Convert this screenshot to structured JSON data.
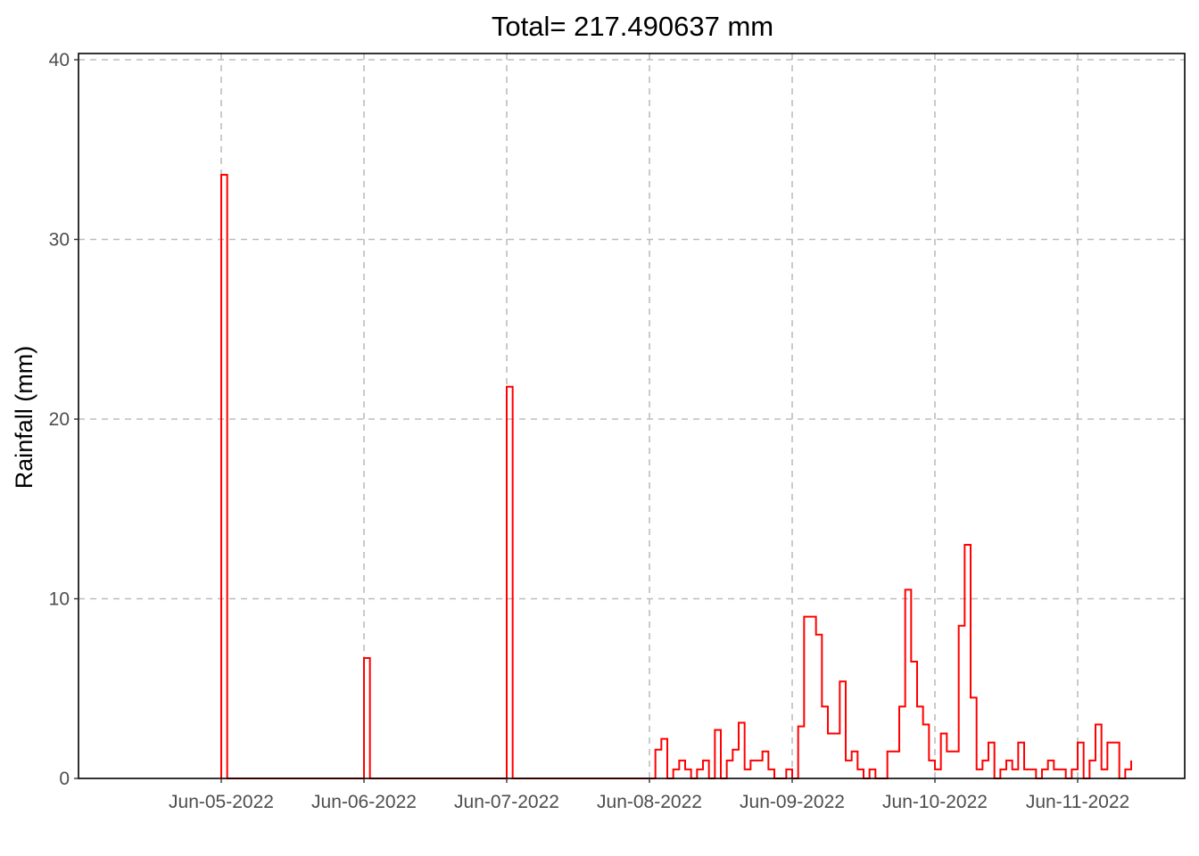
{
  "chart_data": {
    "type": "line",
    "step": true,
    "title": "Total= 217.490637 mm",
    "ylabel": "Rainfall (mm)",
    "xlabel": "",
    "ylim": [
      0,
      40
    ],
    "y_ticks": [
      0,
      10,
      20,
      30,
      40
    ],
    "x_ticks": [
      {
        "day": "2022-06-05",
        "label": "Jun-05-2022"
      },
      {
        "day": "2022-06-06",
        "label": "Jun-06-2022"
      },
      {
        "day": "2022-06-07",
        "label": "Jun-07-2022"
      },
      {
        "day": "2022-06-08",
        "label": "Jun-08-2022"
      },
      {
        "day": "2022-06-09",
        "label": "Jun-09-2022"
      },
      {
        "day": "2022-06-10",
        "label": "Jun-10-2022"
      },
      {
        "day": "2022-06-11",
        "label": "Jun-11-2022"
      }
    ],
    "xlim": [
      "2022-06-04T00:00",
      "2022-06-11T18:00"
    ],
    "grid": true,
    "legend": "none",
    "color": "#ff0000",
    "series": [
      {
        "points": [
          [
            "2022-06-05T00:00",
            33.6
          ],
          [
            "2022-06-05T01:00",
            0
          ],
          [
            "2022-06-06T00:00",
            6.7
          ],
          [
            "2022-06-06T01:00",
            0
          ],
          [
            "2022-06-07T00:00",
            21.8
          ],
          [
            "2022-06-07T01:00",
            0
          ],
          [
            "2022-06-08T00:00",
            0
          ],
          [
            "2022-06-08T01:00",
            1.6
          ],
          [
            "2022-06-08T02:00",
            2.2
          ],
          [
            "2022-06-08T03:00",
            0
          ],
          [
            "2022-06-08T04:00",
            0.5
          ],
          [
            "2022-06-08T05:00",
            1.0
          ],
          [
            "2022-06-08T06:00",
            0.5
          ],
          [
            "2022-06-08T07:00",
            0
          ],
          [
            "2022-06-08T08:00",
            0.5
          ],
          [
            "2022-06-08T09:00",
            1.0
          ],
          [
            "2022-06-08T10:00",
            0
          ],
          [
            "2022-06-08T11:00",
            2.7
          ],
          [
            "2022-06-08T12:00",
            0
          ],
          [
            "2022-06-08T13:00",
            1.0
          ],
          [
            "2022-06-08T14:00",
            1.6
          ],
          [
            "2022-06-08T15:00",
            3.1
          ],
          [
            "2022-06-08T16:00",
            0.5
          ],
          [
            "2022-06-08T17:00",
            1.0
          ],
          [
            "2022-06-08T18:00",
            1.0
          ],
          [
            "2022-06-08T19:00",
            1.5
          ],
          [
            "2022-06-08T20:00",
            0.5
          ],
          [
            "2022-06-08T21:00",
            0
          ],
          [
            "2022-06-08T23:00",
            0.5
          ],
          [
            "2022-06-09T00:00",
            0
          ],
          [
            "2022-06-09T01:00",
            2.9
          ],
          [
            "2022-06-09T02:00",
            9.0
          ],
          [
            "2022-06-09T03:00",
            9.0
          ],
          [
            "2022-06-09T04:00",
            8.0
          ],
          [
            "2022-06-09T05:00",
            4.0
          ],
          [
            "2022-06-09T06:00",
            2.5
          ],
          [
            "2022-06-09T07:00",
            2.5
          ],
          [
            "2022-06-09T08:00",
            5.4
          ],
          [
            "2022-06-09T09:00",
            1.0
          ],
          [
            "2022-06-09T10:00",
            1.5
          ],
          [
            "2022-06-09T11:00",
            0.5
          ],
          [
            "2022-06-09T12:00",
            0
          ],
          [
            "2022-06-09T13:00",
            0.5
          ],
          [
            "2022-06-09T14:00",
            0
          ],
          [
            "2022-06-09T16:00",
            1.5
          ],
          [
            "2022-06-09T17:00",
            1.5
          ],
          [
            "2022-06-09T18:00",
            4.0
          ],
          [
            "2022-06-09T19:00",
            10.5
          ],
          [
            "2022-06-09T20:00",
            6.5
          ],
          [
            "2022-06-09T21:00",
            4.0
          ],
          [
            "2022-06-09T22:00",
            3.0
          ],
          [
            "2022-06-09T23:00",
            1.0
          ],
          [
            "2022-06-10T00:00",
            0.5
          ],
          [
            "2022-06-10T01:00",
            2.5
          ],
          [
            "2022-06-10T02:00",
            1.5
          ],
          [
            "2022-06-10T03:00",
            1.5
          ],
          [
            "2022-06-10T04:00",
            8.5
          ],
          [
            "2022-06-10T05:00",
            13.0
          ],
          [
            "2022-06-10T06:00",
            4.5
          ],
          [
            "2022-06-10T07:00",
            0.5
          ],
          [
            "2022-06-10T08:00",
            1.0
          ],
          [
            "2022-06-10T09:00",
            2.0
          ],
          [
            "2022-06-10T10:00",
            0
          ],
          [
            "2022-06-10T11:00",
            0.5
          ],
          [
            "2022-06-10T12:00",
            1.0
          ],
          [
            "2022-06-10T13:00",
            0.5
          ],
          [
            "2022-06-10T14:00",
            2.0
          ],
          [
            "2022-06-10T15:00",
            0.5
          ],
          [
            "2022-06-10T16:00",
            0.5
          ],
          [
            "2022-06-10T17:00",
            0
          ],
          [
            "2022-06-10T18:00",
            0.5
          ],
          [
            "2022-06-10T19:00",
            1.0
          ],
          [
            "2022-06-10T20:00",
            0.5
          ],
          [
            "2022-06-10T21:00",
            0.5
          ],
          [
            "2022-06-10T22:00",
            0
          ],
          [
            "2022-06-10T23:00",
            0.5
          ],
          [
            "2022-06-11T00:00",
            2.0
          ],
          [
            "2022-06-11T01:00",
            0
          ],
          [
            "2022-06-11T02:00",
            1.0
          ],
          [
            "2022-06-11T03:00",
            3.0
          ],
          [
            "2022-06-11T04:00",
            0.5
          ],
          [
            "2022-06-11T05:00",
            2.0
          ],
          [
            "2022-06-11T06:00",
            2.0
          ],
          [
            "2022-06-11T07:00",
            0
          ],
          [
            "2022-06-11T08:00",
            0.5
          ],
          [
            "2022-06-11T09:00",
            1.0
          ]
        ]
      }
    ]
  }
}
